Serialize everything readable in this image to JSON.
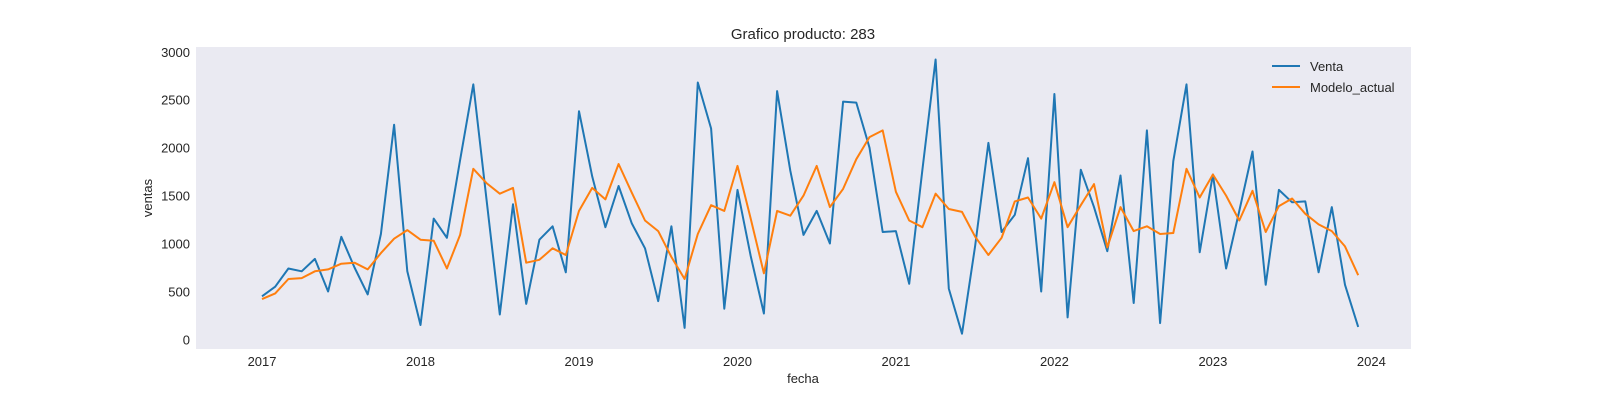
{
  "chart_data": {
    "type": "line",
    "title": "Grafico producto: 283",
    "xlabel": "fecha",
    "ylabel": "ventas",
    "x_start": "2017-01",
    "x_frequency": "monthly",
    "xlim": [
      "2016-08",
      "2024-04"
    ],
    "ylim": [
      -100,
      3050
    ],
    "x_ticks": [
      "2017",
      "2018",
      "2019",
      "2020",
      "2021",
      "2022",
      "2023",
      "2024"
    ],
    "y_ticks": [
      0,
      500,
      1000,
      1500,
      2000,
      2500,
      3000
    ],
    "grid": false,
    "legend_position": "top-right",
    "background": "#eaeaf2",
    "series": [
      {
        "name": "Venta",
        "color": "#1f77b4",
        "values": [
          450,
          550,
          740,
          710,
          840,
          500,
          1070,
          750,
          470,
          1100,
          2240,
          710,
          150,
          1260,
          1060,
          1870,
          2660,
          1460,
          260,
          1410,
          370,
          1040,
          1180,
          700,
          2380,
          1700,
          1170,
          1600,
          1210,
          950,
          400,
          1180,
          120,
          2680,
          2200,
          320,
          1560,
          870,
          270,
          2590,
          1760,
          1090,
          1340,
          1000,
          2480,
          2470,
          2000,
          1120,
          1130,
          580,
          1770,
          2920,
          530,
          60,
          980,
          2050,
          1120,
          1300,
          1890,
          500,
          2560,
          230,
          1770,
          1380,
          920,
          1710,
          380,
          2180,
          170,
          1860,
          2660,
          910,
          1720,
          740,
          1340,
          1960,
          570,
          1560,
          1430,
          1440,
          700,
          1380,
          570,
          130
        ]
      },
      {
        "name": "Modelo_actual",
        "color": "#ff7f0e",
        "values": [
          420,
          480,
          630,
          640,
          710,
          730,
          790,
          800,
          730,
          900,
          1050,
          1140,
          1040,
          1030,
          740,
          1090,
          1780,
          1630,
          1520,
          1580,
          800,
          830,
          950,
          880,
          1340,
          1580,
          1460,
          1830,
          1530,
          1240,
          1130,
          860,
          630,
          1100,
          1400,
          1340,
          1810,
          1260,
          690,
          1340,
          1290,
          1500,
          1810,
          1380,
          1570,
          1880,
          2110,
          2180,
          1540,
          1240,
          1170,
          1520,
          1360,
          1330,
          1070,
          880,
          1060,
          1440,
          1480,
          1260,
          1640,
          1170,
          1400,
          1620,
          960,
          1380,
          1130,
          1180,
          1100,
          1110,
          1780,
          1480,
          1720,
          1500,
          1240,
          1550,
          1120,
          1390,
          1470,
          1310,
          1200,
          1130,
          970,
          670
        ]
      }
    ]
  }
}
